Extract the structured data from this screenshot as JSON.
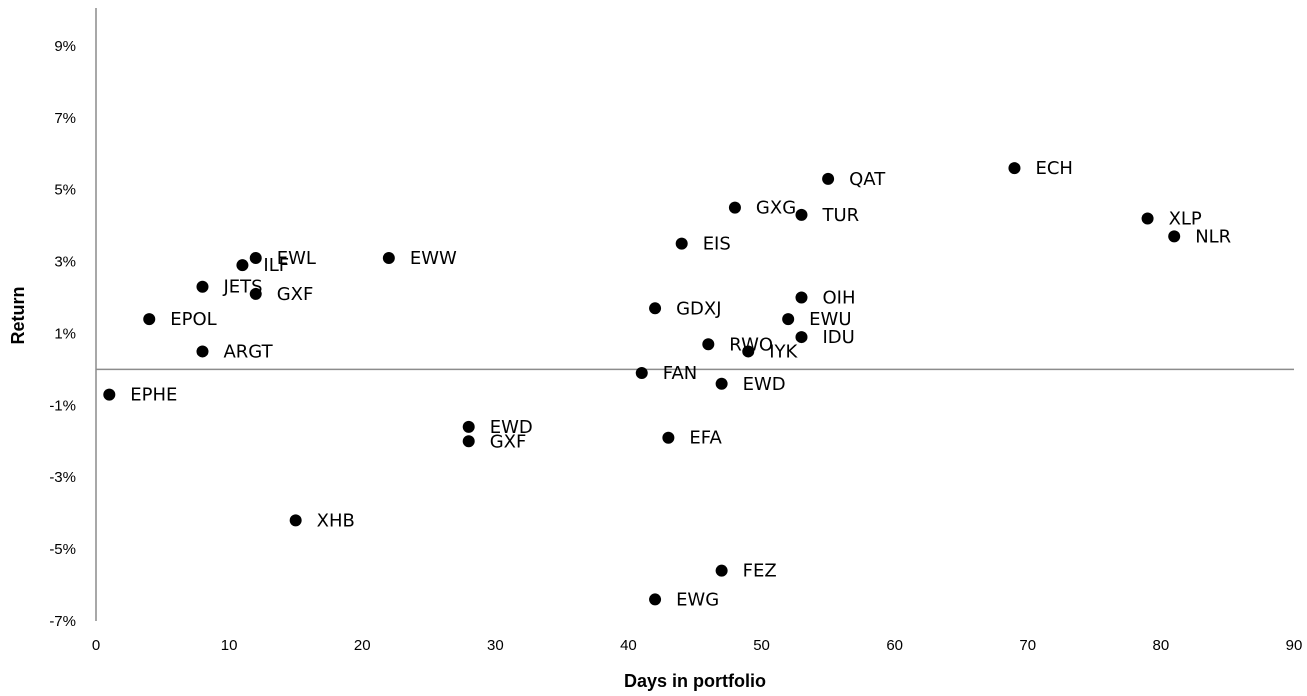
{
  "chart_data": {
    "type": "scatter",
    "xlabel": "Days in portfolio",
    "ylabel": "Return",
    "xlim": [
      0,
      90
    ],
    "ylim": [
      -7,
      10
    ],
    "x_ticks": [
      0,
      10,
      20,
      30,
      40,
      50,
      60,
      70,
      80,
      90
    ],
    "y_ticks": [
      -7,
      -5,
      -3,
      -1,
      1,
      3,
      5,
      7,
      9
    ],
    "y_tick_format": "percent",
    "grid": false,
    "points": [
      {
        "label": "ECH",
        "x": 69,
        "y": 5.6
      },
      {
        "label": "QAT",
        "x": 55,
        "y": 5.3
      },
      {
        "label": "XLP",
        "x": 79,
        "y": 4.2
      },
      {
        "label": "NLR",
        "x": 81,
        "y": 3.7
      },
      {
        "label": "GXG",
        "x": 48,
        "y": 4.5
      },
      {
        "label": "TUR",
        "x": 53,
        "y": 4.3
      },
      {
        "label": "EIS",
        "x": 44,
        "y": 3.5
      },
      {
        "label": "EWW",
        "x": 22,
        "y": 3.1
      },
      {
        "label": "EWL",
        "x": 12,
        "y": 3.1
      },
      {
        "label": "ILF",
        "x": 11,
        "y": 2.9
      },
      {
        "label": "JETS",
        "x": 8,
        "y": 2.3
      },
      {
        "label": "GXF",
        "x": 12,
        "y": 2.1
      },
      {
        "label": "EPOL",
        "x": 4,
        "y": 1.4
      },
      {
        "label": "ARGT",
        "x": 8,
        "y": 0.5
      },
      {
        "label": "OIH",
        "x": 53,
        "y": 2.0
      },
      {
        "label": "GDXJ",
        "x": 42,
        "y": 1.7
      },
      {
        "label": "EWU",
        "x": 52,
        "y": 1.4
      },
      {
        "label": "IDU",
        "x": 53,
        "y": 0.9
      },
      {
        "label": "RWO",
        "x": 46,
        "y": 0.7
      },
      {
        "label": "IYK",
        "x": 49,
        "y": 0.5
      },
      {
        "label": "FAN",
        "x": 41,
        "y": -0.1
      },
      {
        "label": "EWD",
        "x": 47,
        "y": -0.4
      },
      {
        "label": "EPHE",
        "x": 1,
        "y": -0.7
      },
      {
        "label": "EWD",
        "x": 28,
        "y": -1.6
      },
      {
        "label": "GXF",
        "x": 28,
        "y": -2.0
      },
      {
        "label": "EFA",
        "x": 43,
        "y": -1.9
      },
      {
        "label": "XHB",
        "x": 15,
        "y": -4.2
      },
      {
        "label": "FEZ",
        "x": 47,
        "y": -5.6
      },
      {
        "label": "EWG",
        "x": 42,
        "y": -6.4
      }
    ]
  }
}
